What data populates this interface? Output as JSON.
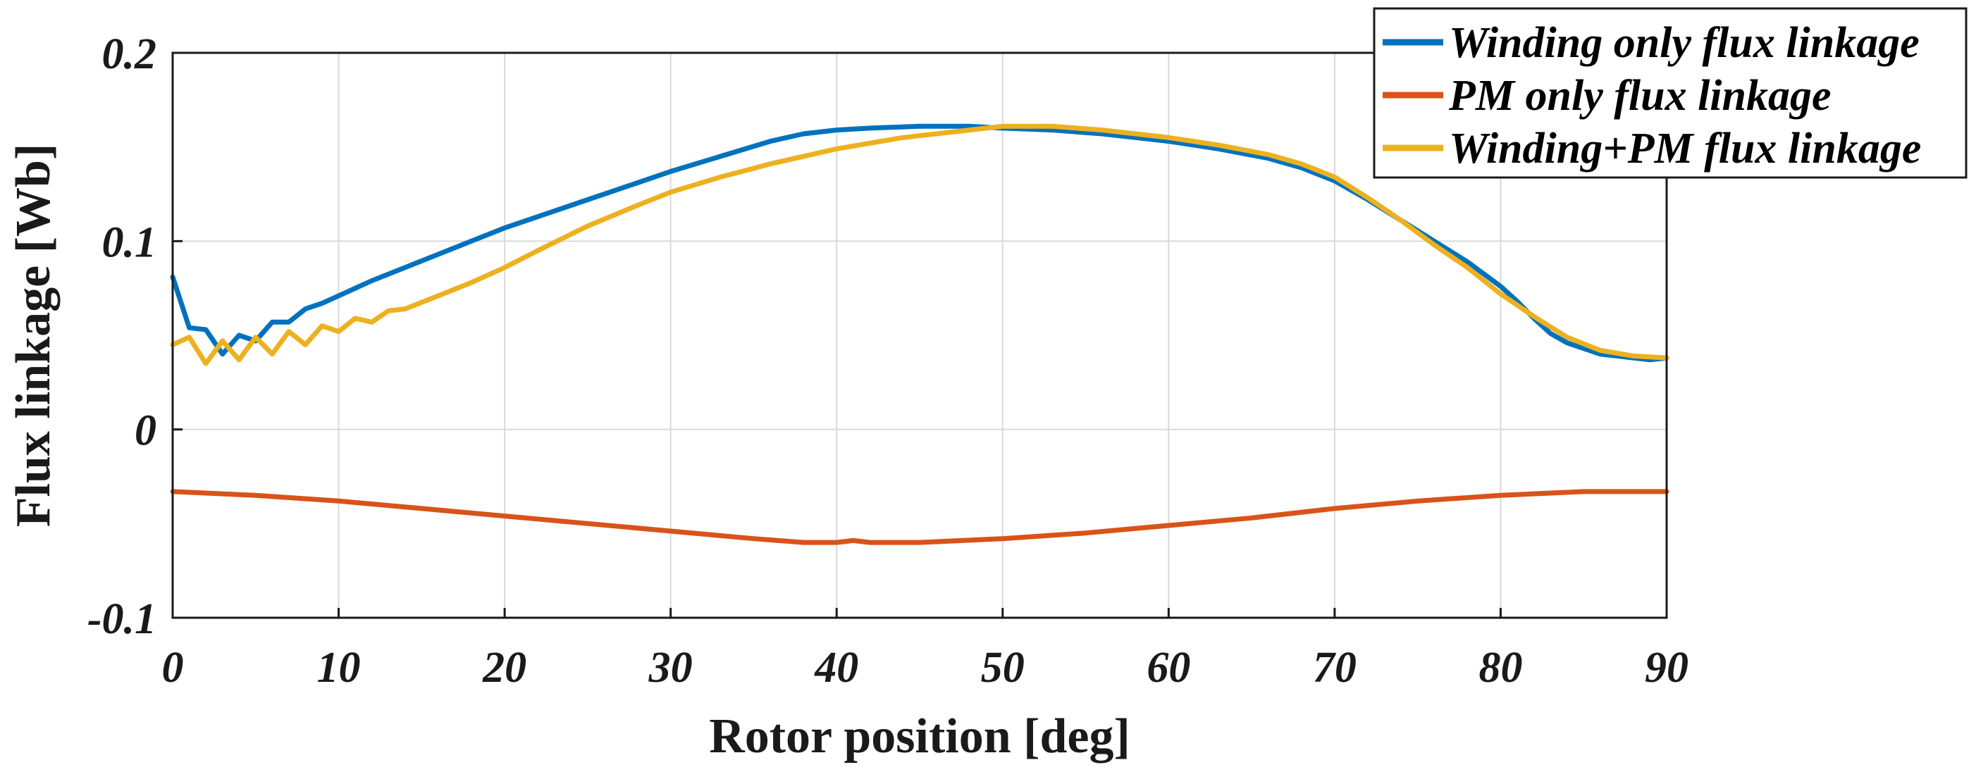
{
  "chart_data": {
    "type": "line",
    "title": "",
    "xlabel": "Rotor position [deg]",
    "ylabel": "Flux linkage [Wb]",
    "xlim": [
      0,
      90
    ],
    "ylim": [
      -0.1,
      0.2
    ],
    "x_ticks": [
      0,
      10,
      20,
      30,
      40,
      50,
      60,
      70,
      80,
      90
    ],
    "x_tick_labels": [
      "0",
      "10",
      "20",
      "30",
      "40",
      "50",
      "60",
      "70",
      "80",
      "90"
    ],
    "y_ticks": [
      -0.1,
      0,
      0.1,
      0.2
    ],
    "y_tick_labels": [
      "-0.1",
      "0",
      "0.1",
      "0.2"
    ],
    "grid": true,
    "legend_position": "top-right",
    "series": [
      {
        "name": "Winding only flux linkage",
        "color": "#0072BD",
        "x": [
          0,
          1,
          2,
          3,
          4,
          5,
          6,
          7,
          8,
          9,
          10,
          12,
          14,
          16,
          18,
          20,
          22,
          25,
          28,
          30,
          33,
          36,
          38,
          40,
          42,
          45,
          48,
          50,
          53,
          56,
          60,
          63,
          66,
          68,
          70,
          72,
          74,
          76,
          78,
          80,
          81,
          82,
          83,
          84,
          85,
          86,
          87,
          88,
          89,
          90
        ],
        "values": [
          0.081,
          0.054,
          0.053,
          0.04,
          0.05,
          0.047,
          0.057,
          0.057,
          0.064,
          0.067,
          0.071,
          0.079,
          0.086,
          0.093,
          0.1,
          0.107,
          0.113,
          0.122,
          0.131,
          0.137,
          0.145,
          0.153,
          0.157,
          0.159,
          0.16,
          0.161,
          0.161,
          0.16,
          0.159,
          0.157,
          0.153,
          0.149,
          0.144,
          0.139,
          0.132,
          0.122,
          0.111,
          0.1,
          0.089,
          0.076,
          0.068,
          0.059,
          0.051,
          0.046,
          0.043,
          0.04,
          0.039,
          0.038,
          0.037,
          0.038
        ]
      },
      {
        "name": "PM only flux linkage",
        "color": "#D95319",
        "x": [
          0,
          5,
          10,
          15,
          20,
          25,
          30,
          35,
          38,
          40,
          41,
          42,
          45,
          50,
          55,
          60,
          65,
          70,
          75,
          80,
          85,
          90
        ],
        "values": [
          -0.033,
          -0.035,
          -0.038,
          -0.042,
          -0.046,
          -0.05,
          -0.054,
          -0.058,
          -0.06,
          -0.06,
          -0.059,
          -0.06,
          -0.06,
          -0.058,
          -0.055,
          -0.051,
          -0.047,
          -0.042,
          -0.038,
          -0.035,
          -0.033,
          -0.033
        ]
      },
      {
        "name": "Winding+PM flux linkage",
        "color": "#EDB120",
        "x": [
          0,
          1,
          2,
          3,
          4,
          5,
          6,
          7,
          8,
          9,
          10,
          11,
          12,
          13,
          14,
          16,
          18,
          20,
          22,
          25,
          28,
          30,
          33,
          36,
          40,
          44,
          48,
          50,
          53,
          56,
          60,
          63,
          66,
          68,
          70,
          72,
          74,
          76,
          78,
          80,
          82,
          84,
          86,
          88,
          90
        ],
        "values": [
          0.045,
          0.049,
          0.035,
          0.047,
          0.037,
          0.049,
          0.04,
          0.052,
          0.045,
          0.055,
          0.052,
          0.059,
          0.057,
          0.063,
          0.064,
          0.071,
          0.078,
          0.086,
          0.095,
          0.108,
          0.119,
          0.126,
          0.134,
          0.141,
          0.149,
          0.155,
          0.159,
          0.161,
          0.161,
          0.159,
          0.155,
          0.151,
          0.146,
          0.141,
          0.134,
          0.123,
          0.111,
          0.098,
          0.086,
          0.072,
          0.06,
          0.049,
          0.042,
          0.039,
          0.038
        ]
      }
    ]
  }
}
